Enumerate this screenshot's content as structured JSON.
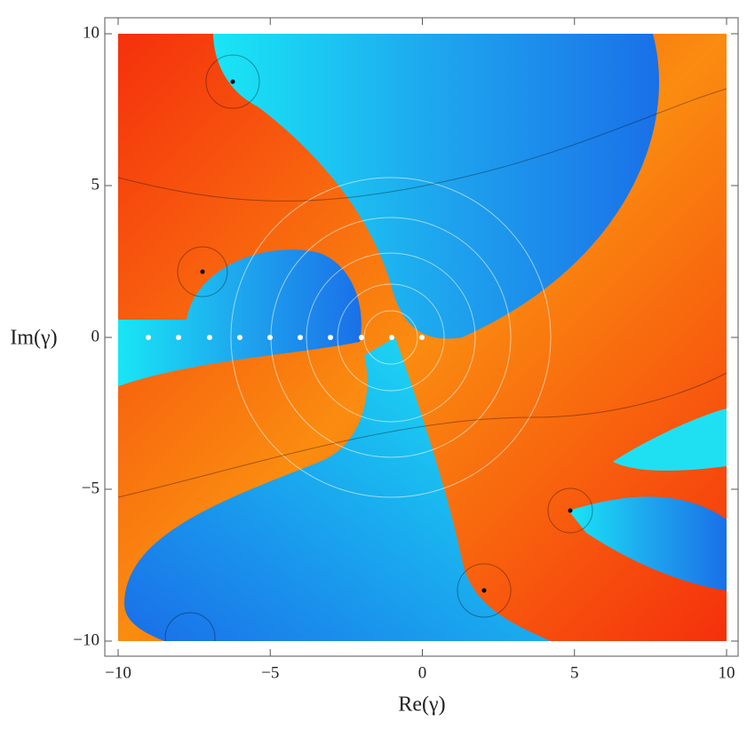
{
  "chart_data": {
    "type": "complex-plot",
    "xlabel": "Re(γ)",
    "ylabel": "Im(γ)",
    "xlim": [
      -10,
      10
    ],
    "ylim": [
      -10,
      10
    ],
    "xticks": [
      {
        "value": -10,
        "label": "−10"
      },
      {
        "value": -5,
        "label": "−5"
      },
      0,
      5,
      10
    ],
    "yticks": [
      {
        "value": -10,
        "label": "−10"
      },
      {
        "value": -5,
        "label": "−5"
      },
      0,
      5,
      10
    ]
  }
}
